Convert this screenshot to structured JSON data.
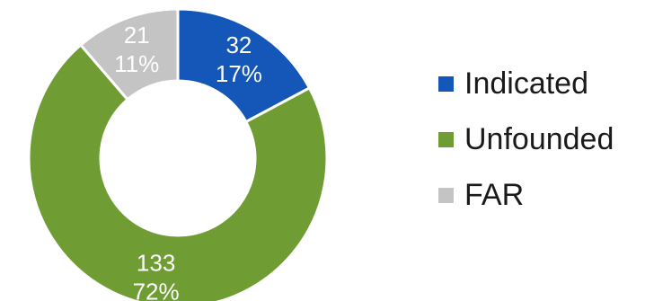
{
  "chart_data": {
    "type": "pie",
    "variant": "donut",
    "title": "",
    "slices": [
      {
        "name": "Indicated",
        "value": 32,
        "percent_label": "17%",
        "color": "#1457b8"
      },
      {
        "name": "Unfounded",
        "value": 133,
        "percent_label": "72%",
        "color": "#6f9d33"
      },
      {
        "name": "FAR",
        "value": 21,
        "percent_label": "11%",
        "color": "#c4c4c4"
      }
    ],
    "legend_placement": "right"
  }
}
